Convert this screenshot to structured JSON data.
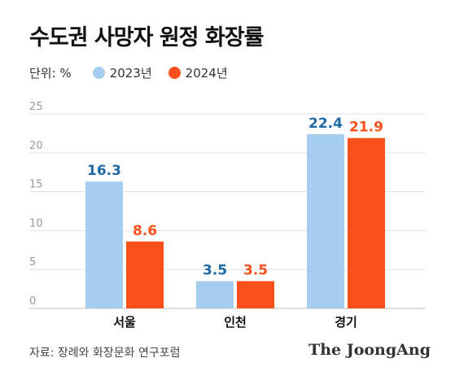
{
  "title": "수도권 사망자 원정 화장률",
  "unit_label": "단위: %",
  "source": "자료: 장례와 화장문화 연구포럼",
  "brand": "The JoongAng",
  "colors": {
    "series_2023": "#a4cdef",
    "series_2024": "#fb4f1c",
    "label_2023": "#1f6aa5",
    "label_2024": "#fb4f1c"
  },
  "chart_data": {
    "type": "bar",
    "categories": [
      "서울",
      "인천",
      "경기"
    ],
    "series": [
      {
        "name": "2023년",
        "values": [
          16.3,
          3.5,
          22.4
        ]
      },
      {
        "name": "2024년",
        "values": [
          8.6,
          3.5,
          21.9
        ]
      }
    ],
    "yticks": [
      "0",
      "5",
      "10",
      "15",
      "20",
      "25"
    ],
    "ylim": [
      0,
      25
    ],
    "grid": true,
    "legend": "top-left"
  }
}
